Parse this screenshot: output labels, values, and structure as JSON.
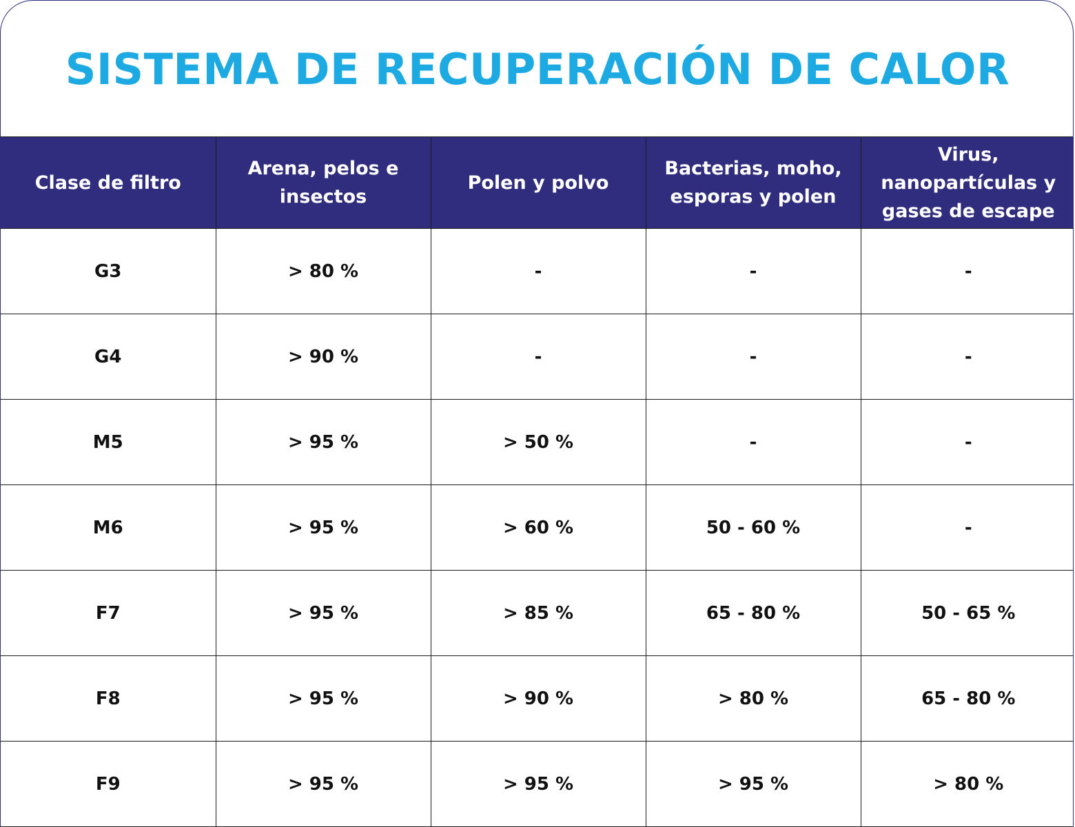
{
  "title": "SISTEMA DE RECUPERACIÓN DE CALOR",
  "colors": {
    "title": "#1da9e2",
    "header_bg": "#312d7e",
    "header_text": "#ffffff",
    "cell_text": "#111111"
  },
  "table": {
    "headers": [
      "Clase de filtro",
      "Arena, pelos e insectos",
      "Polen y polvo",
      "Bacterias, moho, esporas y polen",
      "Virus, nanopartículas y gases de escape"
    ],
    "rows": [
      [
        "G3",
        "> 80 %",
        "-",
        "-",
        "-"
      ],
      [
        "G4",
        "> 90 %",
        "-",
        "-",
        "-"
      ],
      [
        "M5",
        "> 95 %",
        "> 50 %",
        "-",
        "-"
      ],
      [
        "M6",
        "> 95 %",
        "> 60 %",
        "50 - 60 %",
        "-"
      ],
      [
        "F7",
        "> 95 %",
        "> 85 %",
        "65 - 80 %",
        "50 - 65 %"
      ],
      [
        "F8",
        "> 95 %",
        "> 90 %",
        "> 80 %",
        "65 - 80 %"
      ],
      [
        "F9",
        "> 95 %",
        "> 95 %",
        "> 95 %",
        "> 80 %"
      ]
    ]
  }
}
